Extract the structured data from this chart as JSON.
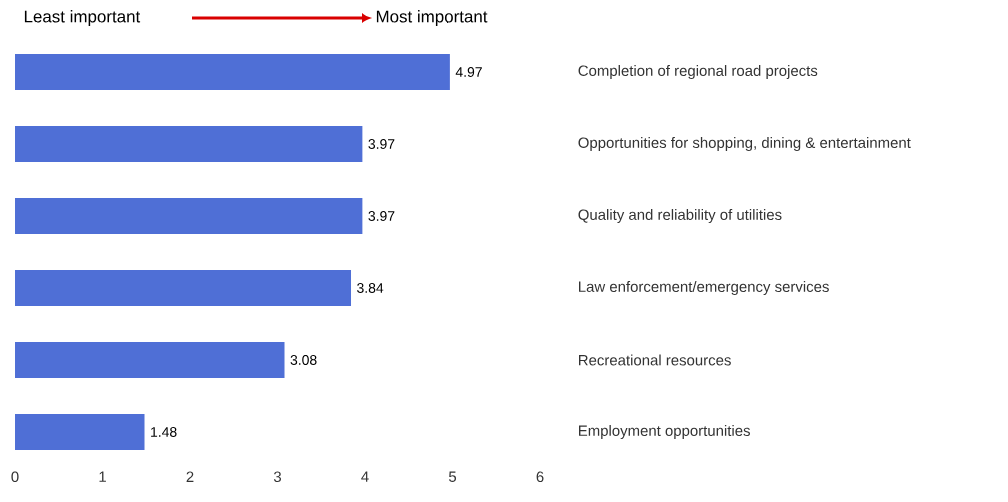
{
  "chart_data": {
    "type": "bar",
    "orientation": "horizontal",
    "categories": [
      "Completion of regional road projects",
      "Opportunities for shopping, dining & entertainment",
      "Quality and reliability of utilities",
      "Law enforcement/emergency services",
      "Recreational resources",
      "Employment opportunities"
    ],
    "values": [
      4.97,
      3.97,
      3.97,
      3.84,
      3.08,
      1.48
    ],
    "color": "#4f6fd6",
    "xlim": [
      0,
      6
    ],
    "xticks": [
      0,
      1,
      2,
      3,
      4,
      5,
      6
    ],
    "data_labels": true,
    "grid": false,
    "annotations": [
      "Least important",
      "Most important"
    ]
  }
}
